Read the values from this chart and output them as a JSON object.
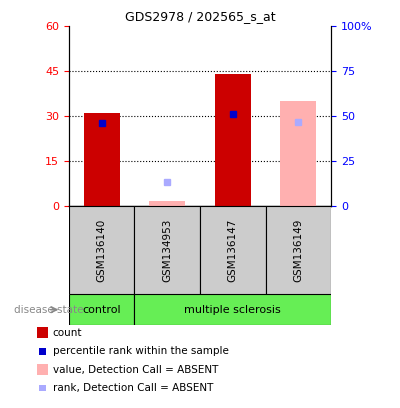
{
  "title": "GDS2978 / 202565_s_at",
  "samples": [
    "GSM136140",
    "GSM134953",
    "GSM136147",
    "GSM136149"
  ],
  "red_bars": [
    31,
    0,
    44,
    0
  ],
  "blue_markers": [
    27.5,
    0,
    30.5,
    0
  ],
  "pink_bars": [
    0,
    1.5,
    0,
    35
  ],
  "light_blue_markers": [
    0,
    8,
    0,
    28
  ],
  "left_ylim": [
    0,
    60
  ],
  "left_yticks": [
    0,
    15,
    30,
    45,
    60
  ],
  "right_yticklabels": [
    "0",
    "25",
    "50",
    "75",
    "100%"
  ],
  "color_red": "#cc0000",
  "color_blue": "#0000cc",
  "color_pink": "#ffb0b0",
  "color_light_blue": "#aaaaff",
  "color_green": "#66ee55",
  "color_gray": "#cccccc",
  "bar_width": 0.55,
  "legend_items": [
    {
      "color": "#cc0000",
      "label": "count",
      "big": true
    },
    {
      "color": "#0000cc",
      "label": "percentile rank within the sample",
      "big": false
    },
    {
      "color": "#ffb0b0",
      "label": "value, Detection Call = ABSENT",
      "big": true
    },
    {
      "color": "#aaaaff",
      "label": "rank, Detection Call = ABSENT",
      "big": false
    }
  ],
  "disease_label": "disease state"
}
